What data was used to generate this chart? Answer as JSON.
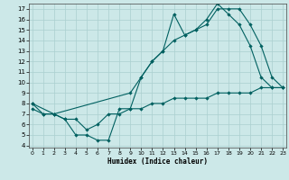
{
  "xlabel": "Humidex (Indice chaleur)",
  "bg_color": "#cce8e8",
  "grid_color": "#aacfcf",
  "line_color": "#006060",
  "line1_x": [
    0,
    1,
    2,
    3,
    4,
    5,
    6,
    7,
    8,
    9,
    10,
    11,
    12,
    13,
    14,
    15,
    16,
    17,
    18,
    19,
    20,
    21,
    22,
    23
  ],
  "line1_y": [
    8.0,
    7.0,
    7.0,
    6.5,
    5.0,
    5.0,
    4.5,
    4.5,
    7.5,
    7.5,
    10.5,
    12.0,
    13.0,
    16.5,
    14.5,
    15.0,
    16.0,
    17.5,
    16.5,
    15.5,
    13.5,
    10.5,
    9.5,
    9.5
  ],
  "line2_x": [
    0,
    2,
    9,
    10,
    11,
    12,
    13,
    14,
    15,
    16,
    17,
    18,
    19,
    20,
    21,
    22,
    23
  ],
  "line2_y": [
    8.0,
    7.0,
    9.0,
    10.5,
    12.0,
    13.0,
    14.0,
    14.5,
    15.0,
    15.5,
    17.0,
    17.0,
    17.0,
    15.5,
    13.5,
    10.5,
    9.5
  ],
  "line3_x": [
    0,
    1,
    2,
    3,
    4,
    5,
    6,
    7,
    8,
    9,
    10,
    11,
    12,
    13,
    14,
    15,
    16,
    17,
    18,
    19,
    20,
    21,
    22,
    23
  ],
  "line3_y": [
    7.5,
    7.0,
    7.0,
    6.5,
    6.5,
    5.5,
    6.0,
    7.0,
    7.0,
    7.5,
    7.5,
    8.0,
    8.0,
    8.5,
    8.5,
    8.5,
    8.5,
    9.0,
    9.0,
    9.0,
    9.0,
    9.5,
    9.5,
    9.5
  ],
  "xlim": [
    0,
    23
  ],
  "ylim": [
    3.8,
    17.5
  ],
  "yticks": [
    4,
    5,
    6,
    7,
    8,
    9,
    10,
    11,
    12,
    13,
    14,
    15,
    16,
    17
  ],
  "xticks": [
    0,
    1,
    2,
    3,
    4,
    5,
    6,
    7,
    8,
    9,
    10,
    11,
    12,
    13,
    14,
    15,
    16,
    17,
    18,
    19,
    20,
    21,
    22,
    23
  ]
}
